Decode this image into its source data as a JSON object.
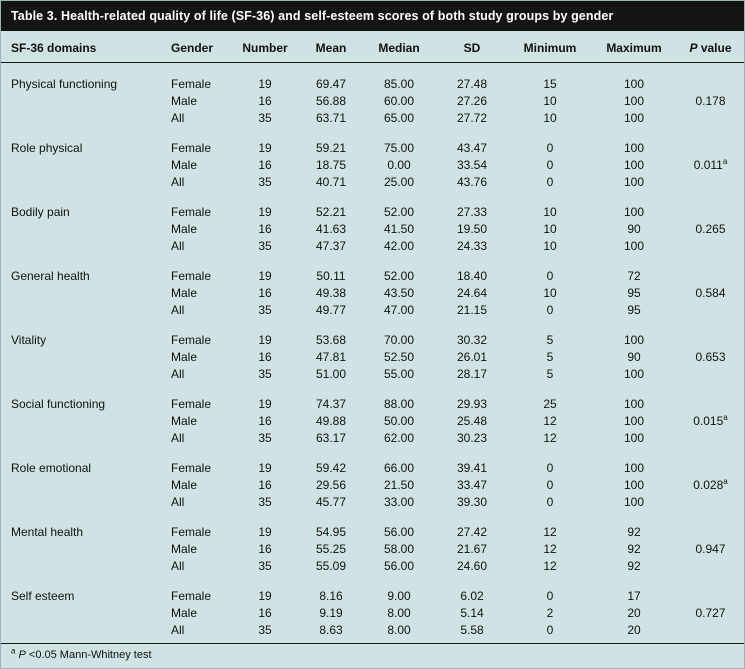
{
  "colors": {
    "page_background": "#cfe3e4",
    "title_bar_background": "#141414",
    "title_text": "#ffffff",
    "body_text": "#111111",
    "rule_color": "#1a1a1a"
  },
  "table": {
    "title": "Table 3. Health-related quality of life (SF-36) and self-esteem scores of both study groups by gender",
    "columns": [
      "SF-36 domains",
      "Gender",
      "Number",
      "Mean",
      "Median",
      "SD",
      "Minimum",
      "Maximum"
    ],
    "p_column": {
      "italic": "P",
      "rest": " value"
    },
    "groups": [
      {
        "domain": "Physical functioning",
        "p_value": "0.178",
        "p_sup": "",
        "rows": [
          {
            "gender": "Female",
            "number": "19",
            "mean": "69.47",
            "median": "85.00",
            "sd": "27.48",
            "min": "15",
            "max": "100"
          },
          {
            "gender": "Male",
            "number": "16",
            "mean": "56.88",
            "median": "60.00",
            "sd": "27.26",
            "min": "10",
            "max": "100"
          },
          {
            "gender": "All",
            "number": "35",
            "mean": "63.71",
            "median": "65.00",
            "sd": "27.72",
            "min": "10",
            "max": "100"
          }
        ]
      },
      {
        "domain": "Role physical",
        "p_value": "0.011",
        "p_sup": "a",
        "rows": [
          {
            "gender": "Female",
            "number": "19",
            "mean": "59.21",
            "median": "75.00",
            "sd": "43.47",
            "min": "0",
            "max": "100"
          },
          {
            "gender": "Male",
            "number": "16",
            "mean": "18.75",
            "median": "0.00",
            "sd": "33.54",
            "min": "0",
            "max": "100"
          },
          {
            "gender": "All",
            "number": "35",
            "mean": "40.71",
            "median": "25.00",
            "sd": "43.76",
            "min": "0",
            "max": "100"
          }
        ]
      },
      {
        "domain": "Bodily pain",
        "p_value": "0.265",
        "p_sup": "",
        "rows": [
          {
            "gender": "Female",
            "number": "19",
            "mean": "52.21",
            "median": "52.00",
            "sd": "27.33",
            "min": "10",
            "max": "100"
          },
          {
            "gender": "Male",
            "number": "16",
            "mean": "41.63",
            "median": "41.50",
            "sd": "19.50",
            "min": "10",
            "max": "90"
          },
          {
            "gender": "All",
            "number": "35",
            "mean": "47.37",
            "median": "42.00",
            "sd": "24.33",
            "min": "10",
            "max": "100"
          }
        ]
      },
      {
        "domain": "General health",
        "p_value": "0.584",
        "p_sup": "",
        "rows": [
          {
            "gender": "Female",
            "number": "19",
            "mean": "50.11",
            "median": "52.00",
            "sd": "18.40",
            "min": "0",
            "max": "72"
          },
          {
            "gender": "Male",
            "number": "16",
            "mean": "49.38",
            "median": "43.50",
            "sd": "24.64",
            "min": "10",
            "max": "95"
          },
          {
            "gender": "All",
            "number": "35",
            "mean": "49.77",
            "median": "47.00",
            "sd": "21.15",
            "min": "0",
            "max": "95"
          }
        ]
      },
      {
        "domain": "Vitality",
        "p_value": "0.653",
        "p_sup": "",
        "rows": [
          {
            "gender": "Female",
            "number": "19",
            "mean": "53.68",
            "median": "70.00",
            "sd": "30.32",
            "min": "5",
            "max": "100"
          },
          {
            "gender": "Male",
            "number": "16",
            "mean": "47.81",
            "median": "52.50",
            "sd": "26.01",
            "min": "5",
            "max": "90"
          },
          {
            "gender": "All",
            "number": "35",
            "mean": "51.00",
            "median": "55.00",
            "sd": "28.17",
            "min": "5",
            "max": "100"
          }
        ]
      },
      {
        "domain": "Social functioning",
        "p_value": "0.015",
        "p_sup": "a",
        "rows": [
          {
            "gender": "Female",
            "number": "19",
            "mean": "74.37",
            "median": "88.00",
            "sd": "29.93",
            "min": "25",
            "max": "100"
          },
          {
            "gender": "Male",
            "number": "16",
            "mean": "49.88",
            "median": "50.00",
            "sd": "25.48",
            "min": "12",
            "max": "100"
          },
          {
            "gender": "All",
            "number": "35",
            "mean": "63.17",
            "median": "62.00",
            "sd": "30.23",
            "min": "12",
            "max": "100"
          }
        ]
      },
      {
        "domain": "Role emotional",
        "p_value": "0.028",
        "p_sup": "a",
        "rows": [
          {
            "gender": "Female",
            "number": "19",
            "mean": "59.42",
            "median": "66.00",
            "sd": "39.41",
            "min": "0",
            "max": "100"
          },
          {
            "gender": "Male",
            "number": "16",
            "mean": "29.56",
            "median": "21.50",
            "sd": "33.47",
            "min": "0",
            "max": "100"
          },
          {
            "gender": "All",
            "number": "35",
            "mean": "45.77",
            "median": "33.00",
            "sd": "39.30",
            "min": "0",
            "max": "100"
          }
        ]
      },
      {
        "domain": "Mental health",
        "p_value": "0.947",
        "p_sup": "",
        "rows": [
          {
            "gender": "Female",
            "number": "19",
            "mean": "54.95",
            "median": "56.00",
            "sd": "27.42",
            "min": "12",
            "max": "92"
          },
          {
            "gender": "Male",
            "number": "16",
            "mean": "55.25",
            "median": "58.00",
            "sd": "21.67",
            "min": "12",
            "max": "92"
          },
          {
            "gender": "All",
            "number": "35",
            "mean": "55.09",
            "median": "56.00",
            "sd": "24.60",
            "min": "12",
            "max": "92"
          }
        ]
      },
      {
        "domain": "Self esteem",
        "p_value": "0.727",
        "p_sup": "",
        "rows": [
          {
            "gender": "Female",
            "number": "19",
            "mean": "8.16",
            "median": "9.00",
            "sd": "6.02",
            "min": "0",
            "max": "17"
          },
          {
            "gender": "Male",
            "number": "16",
            "mean": "9.19",
            "median": "8.00",
            "sd": "5.14",
            "min": "2",
            "max": "20"
          },
          {
            "gender": "All",
            "number": "35",
            "mean": "8.63",
            "median": "8.00",
            "sd": "5.58",
            "min": "0",
            "max": "20"
          }
        ]
      }
    ],
    "footnote": {
      "sup": "a",
      "italic": "P",
      "rest": " <0.05 Mann-Whitney test"
    }
  }
}
